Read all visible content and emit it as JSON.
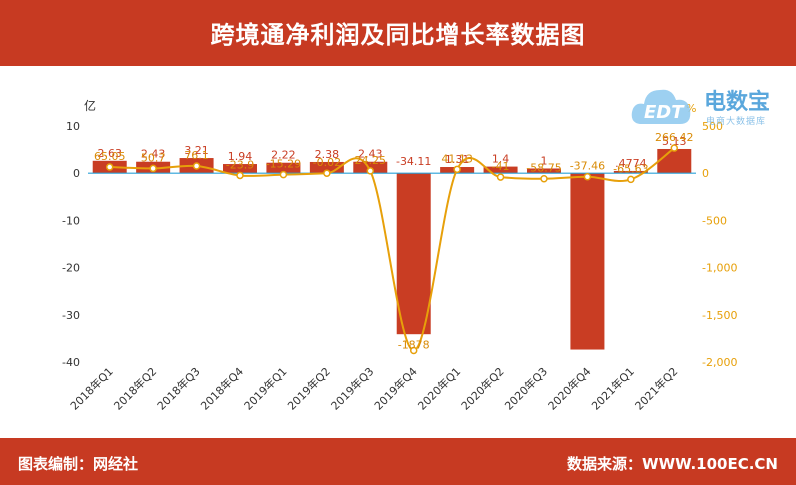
{
  "header": {
    "title": "跨境通净利润及同比增长率数据图"
  },
  "footer": {
    "editor": "图表编制：网经社",
    "source": "数据来源：WWW.100EC.CN"
  },
  "logo": {
    "brand": "电数宝",
    "sub": "电商大数据库",
    "badge": "EDT"
  },
  "colors": {
    "bar": "#c93d23",
    "line": "#e7a00a",
    "axis_line": "#2aa0d8",
    "header": "#c73a22"
  },
  "chart_data": {
    "type": "bar",
    "categories": [
      "2018年Q1",
      "2018年Q2",
      "2018年Q3",
      "2018年Q4",
      "2019年Q1",
      "2019年Q2",
      "2019年Q3",
      "2019年Q4",
      "2020年Q1",
      "2020年Q2",
      "2020年Q3",
      "2020年Q4",
      "2021年Q1",
      "2021年Q2"
    ],
    "series": [
      {
        "axis": "left",
        "type": "bar",
        "values": [
          2.63,
          2.43,
          3.21,
          1.94,
          2.22,
          2.38,
          2.43,
          -34.11,
          1.31,
          1.4,
          1,
          -37.36,
          0.4774,
          5.13
        ]
      },
      {
        "axis": "right",
        "type": "line",
        "values": [
          65.05,
          50.7,
          76.1,
          -23.9,
          -15.29,
          -0.02,
          24.25,
          -1878,
          41.13,
          -41,
          -58.75,
          -37.46,
          -65.63,
          266.42
        ]
      }
    ],
    "bar_labels": [
      "2.63",
      "2.43",
      "3.21",
      "1.94",
      "2.22",
      "2.38",
      "2.43",
      "-34.11",
      "1.31",
      "1.4",
      "1",
      "",
      ".4774",
      "5.13"
    ],
    "line_labels": [
      "65.05",
      "50.7",
      "76.1",
      "-23.9",
      "-15.29",
      "-0.02",
      "24.25",
      "-1878",
      "41.13",
      "-41",
      "-58.75",
      "-37.46",
      "-65.63",
      "266.42"
    ],
    "left_axis": {
      "unit": "亿",
      "ylim": [
        -40,
        10
      ],
      "ticks": [
        "10",
        "0",
        "-10",
        "-20",
        "-30",
        "-40"
      ]
    },
    "right_axis": {
      "unit": "%",
      "ylim": [
        -2000,
        500
      ],
      "ticks": [
        "500",
        "0",
        "-500",
        "-1,000",
        "-1,500",
        "-2,000"
      ]
    },
    "grid": false,
    "legend": "none"
  }
}
